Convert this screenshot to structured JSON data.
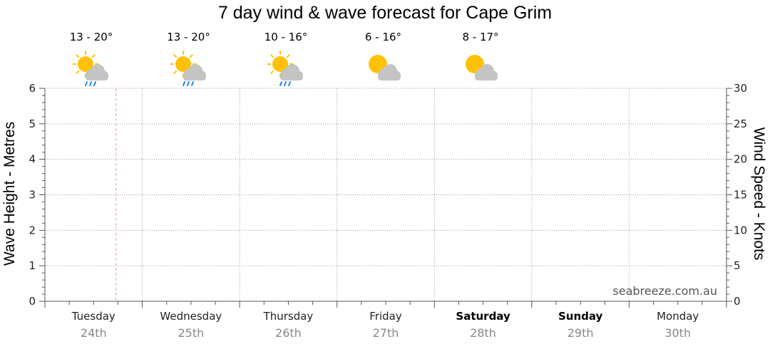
{
  "chart_data": {
    "type": "line",
    "title": "7 day wind & wave forecast for Cape Grim",
    "ylabel_left": "Wave Height - Metres",
    "ylabel_right": "Wind Speed - Knots",
    "ylim_left": [
      0,
      6
    ],
    "ylim_right": [
      0,
      30
    ],
    "yticks_left": [
      "0",
      "1",
      "2",
      "3",
      "4",
      "5",
      "6"
    ],
    "yticks_right": [
      "0",
      "5",
      "10",
      "15",
      "20",
      "25",
      "30"
    ],
    "grid": true,
    "days": [
      {
        "name": "Tuesday",
        "date": "24th",
        "bold": false
      },
      {
        "name": "Wednesday",
        "date": "25th",
        "bold": false
      },
      {
        "name": "Thursday",
        "date": "26th",
        "bold": false
      },
      {
        "name": "Friday",
        "date": "27th",
        "bold": false
      },
      {
        "name": "Saturday",
        "date": "28th",
        "bold": true
      },
      {
        "name": "Sunday",
        "date": "29th",
        "bold": true
      },
      {
        "name": "Monday",
        "date": "30th",
        "bold": false
      }
    ],
    "forecasts": [
      {
        "temp": "13 - 20°",
        "icon": "sun-cloud-rain-icon"
      },
      {
        "temp": "13 - 20°",
        "icon": "sun-cloud-rain-icon"
      },
      {
        "temp": "10 - 16°",
        "icon": "sun-cloud-rain-icon"
      },
      {
        "temp": "6 - 16°",
        "icon": "sun-cloud-icon"
      },
      {
        "temp": "8 - 17°",
        "icon": "sun-cloud-icon"
      }
    ],
    "current_time_marker_day_fraction": 0.73,
    "series": []
  },
  "watermark": "seabreeze.com.au",
  "colors": {
    "grid": "#999999",
    "now_marker": "#f0a080",
    "sun": "#ffc107",
    "cloud": "#c4c4c4",
    "rain": "#1e88e5"
  }
}
